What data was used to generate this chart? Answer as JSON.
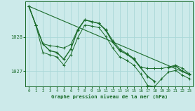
{
  "xlabel": "Graphe pression niveau de la mer (hPa)",
  "background_color": "#cceaea",
  "grid_color": "#aad8d8",
  "line_color": "#1a6b2a",
  "xlim": [
    -0.5,
    23.5
  ],
  "ylim": [
    1026.55,
    1029.05
  ],
  "yticks": [
    1027,
    1028
  ],
  "xticks": [
    0,
    1,
    2,
    3,
    4,
    5,
    6,
    7,
    8,
    9,
    10,
    11,
    12,
    13,
    14,
    15,
    16,
    17,
    18,
    19,
    20,
    21,
    22,
    23
  ],
  "hours": [
    0,
    1,
    2,
    3,
    4,
    5,
    6,
    7,
    8,
    9,
    10,
    11,
    12,
    13,
    14,
    15,
    16,
    17,
    18,
    19,
    20,
    21,
    22,
    23
  ],
  "line_main": [
    1028.9,
    1028.35,
    1027.8,
    1027.6,
    1027.55,
    1027.35,
    1027.65,
    1028.2,
    1028.5,
    1028.45,
    1028.4,
    1028.2,
    1027.85,
    1027.6,
    1027.5,
    1027.35,
    1027.1,
    1026.85,
    1026.7,
    null,
    1027.1,
    1027.15,
    1027.0,
    1026.9
  ],
  "line_max": [
    1028.9,
    1028.35,
    1027.8,
    1027.75,
    1027.72,
    1027.68,
    1027.78,
    1028.22,
    1028.5,
    1028.45,
    1028.4,
    1028.22,
    1027.9,
    1027.65,
    1027.52,
    1027.38,
    1027.12,
    1027.08,
    1027.08,
    1027.08,
    1027.12,
    1027.18,
    1027.08,
    1026.92
  ],
  "line_min": [
    1028.9,
    1028.35,
    1027.55,
    1027.48,
    1027.42,
    1027.18,
    1027.48,
    1027.98,
    1028.35,
    1028.32,
    1028.28,
    1028.02,
    1027.68,
    1027.42,
    1027.32,
    1027.18,
    1026.92,
    1026.58,
    1026.55,
    1026.78,
    1026.98,
    1027.02,
    1026.88,
    1026.78
  ],
  "line_trend_x": [
    0,
    23
  ],
  "line_trend_y": [
    1028.9,
    1026.9
  ]
}
